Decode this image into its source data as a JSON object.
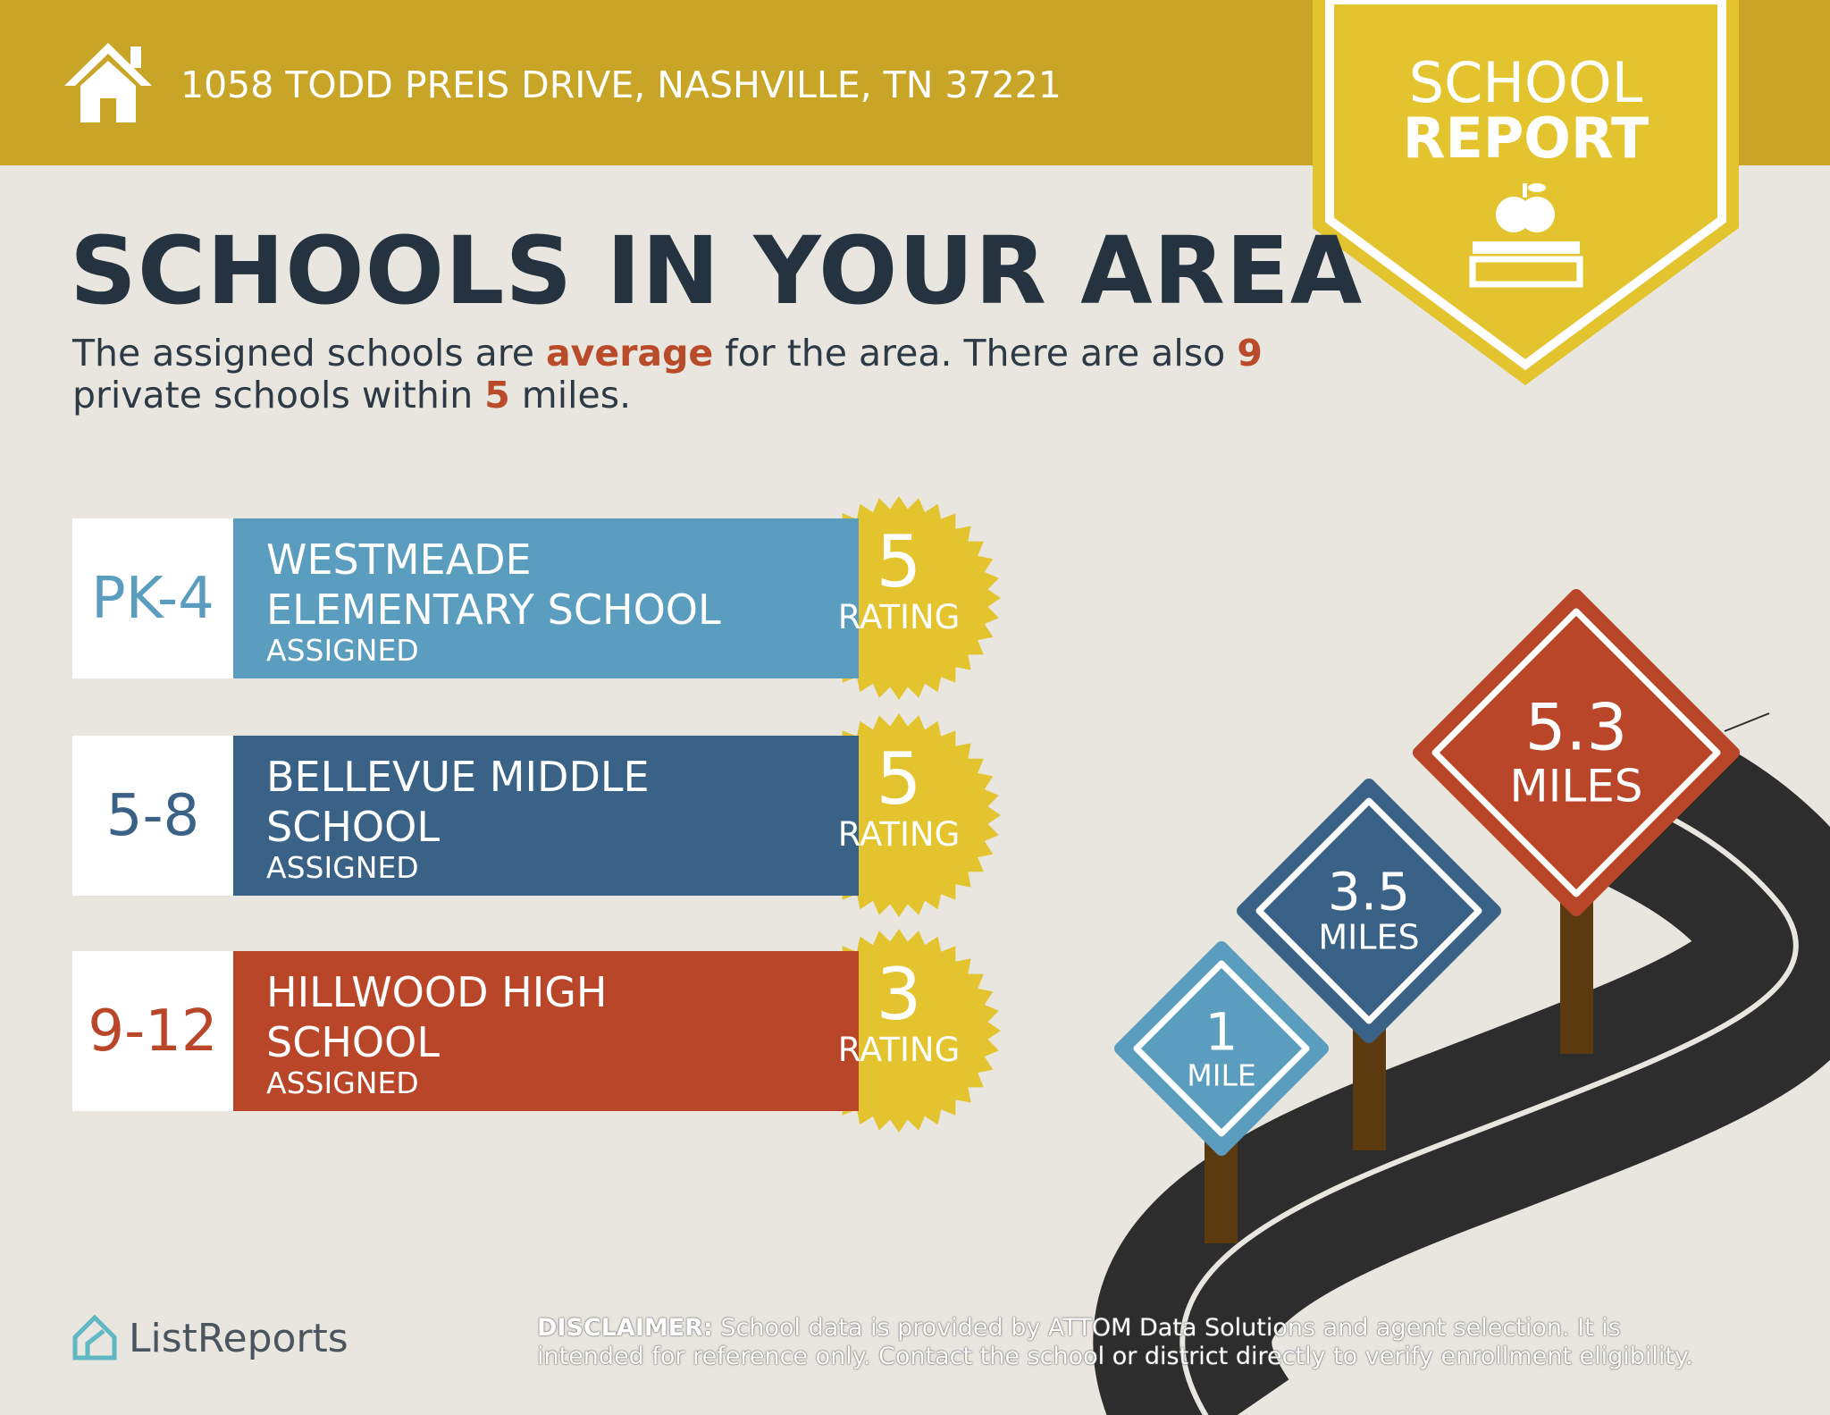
{
  "header": {
    "address": "1058 TODD PREIS DRIVE, NASHVILLE, TN 37221"
  },
  "badge": {
    "line1": "SCHOOL",
    "line2": "REPORT"
  },
  "title": "SCHOOLS IN YOUR AREA",
  "summary": {
    "part1": "The assigned schools are ",
    "quality": "average",
    "part2": " for the area. There are also ",
    "private_count": 9,
    "part3": " private schools within ",
    "radius": 5,
    "part4": " miles."
  },
  "schools": [
    {
      "grades": "PK-4",
      "name": "WESTMEADE ELEMENTARY SCHOOL",
      "status": "ASSIGNED",
      "rating": 5,
      "rating_label": "RATING"
    },
    {
      "grades": "5-8",
      "name": "BELLEVUE MIDDLE SCHOOL",
      "status": "ASSIGNED",
      "rating": 5,
      "rating_label": "RATING"
    },
    {
      "grades": "9-12",
      "name": "HILLWOOD HIGH SCHOOL",
      "status": "ASSIGNED",
      "rating": 3,
      "rating_label": "RATING"
    }
  ],
  "signs": [
    {
      "distance": 1,
      "unit": "MILE"
    },
    {
      "distance": 3.5,
      "unit": "MILES"
    },
    {
      "distance": 5.3,
      "unit": "MILES"
    }
  ],
  "footer": {
    "logo": "ListReports",
    "disclaimer_label": "DISCLAIMER:",
    "disclaimer": " School data is provided by ATTOM Data Solutions and agent selection. It is intended for reference only. Contact the school or district directly to verify enrollment eligibility."
  }
}
